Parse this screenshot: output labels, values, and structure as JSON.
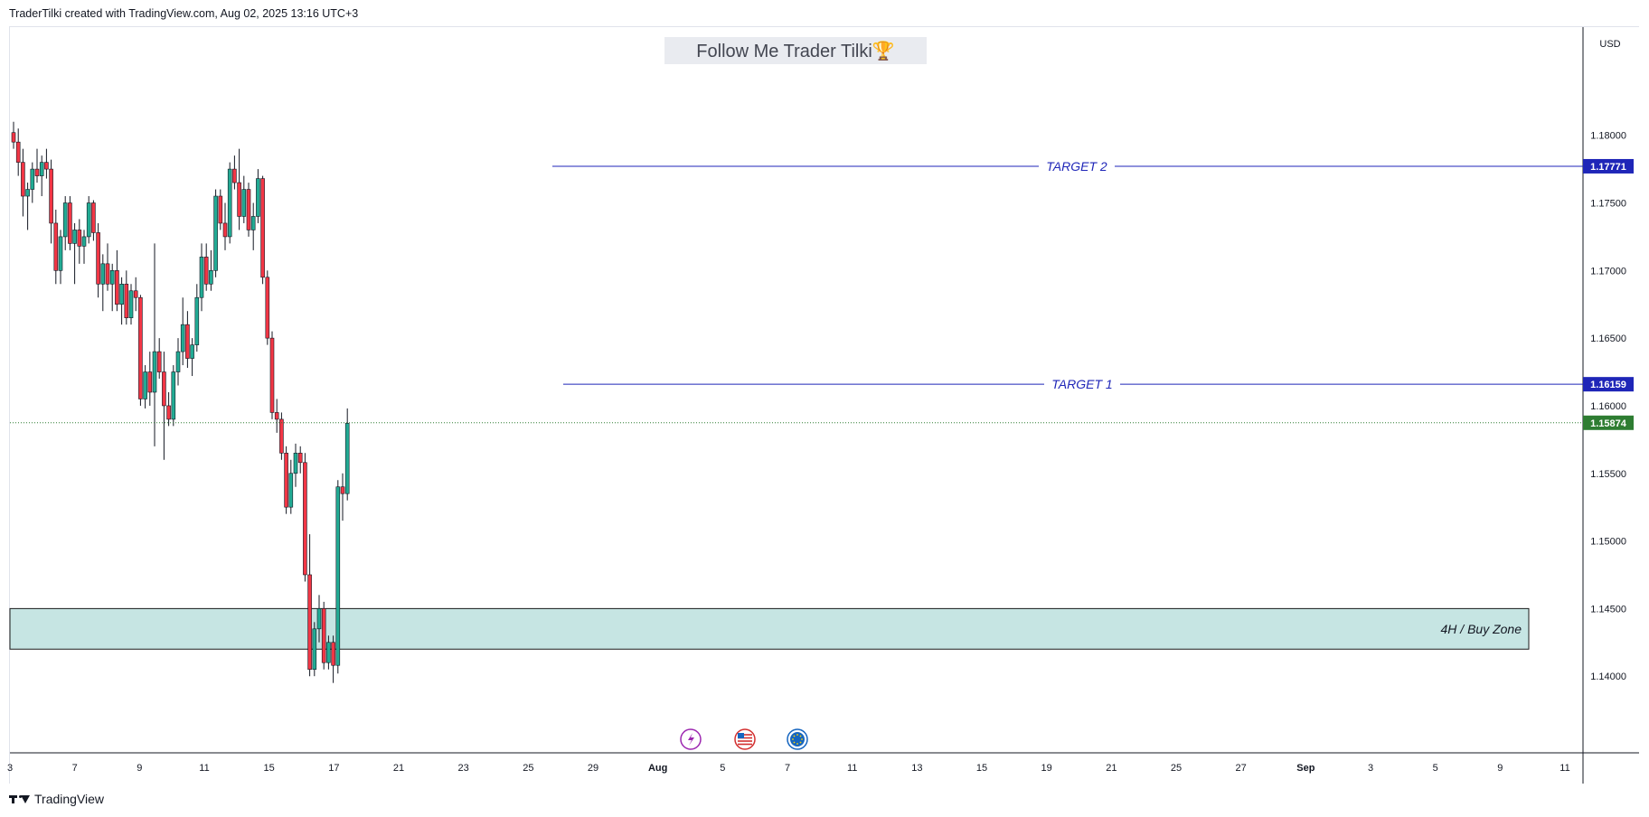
{
  "header": {
    "attribution": "TraderTilki created with TradingView.com, Aug 02, 2025 13:16 UTC+3"
  },
  "footer": {
    "brand": "TradingView"
  },
  "colors": {
    "up": "#22ab94",
    "down": "#f23645",
    "line": "#2962ff",
    "price": "#2e7d32",
    "zone_fill": "#c6e5e3",
    "zone_border": "#1a1a1a",
    "grid": "#f0f3fa"
  },
  "chart_data": {
    "type": "candlestick",
    "title": "Follow Me Trader Tilki🏆",
    "currency": "USD",
    "ylim": [
      1.135,
      1.188
    ],
    "y_ticks": [
      "1.18000",
      "1.17500",
      "1.17000",
      "1.16500",
      "1.16000",
      "1.15500",
      "1.15000",
      "1.14500",
      "1.14000"
    ],
    "x_tick_labels": [
      "3",
      "7",
      "9",
      "11",
      "15",
      "17",
      "21",
      "23",
      "25",
      "29",
      "Aug",
      "5",
      "7",
      "11",
      "13",
      "15",
      "19",
      "21",
      "25",
      "27",
      "Sep",
      "3",
      "5",
      "9",
      "11"
    ],
    "levels": [
      {
        "name": "target2",
        "label": "TARGET 2",
        "price": 1.17771,
        "price_label": "1.17771"
      },
      {
        "name": "target1",
        "label": "TARGET 1",
        "price": 1.16159,
        "price_label": "1.16159"
      }
    ],
    "last_price": {
      "price": 1.15874,
      "label": "1.15874"
    },
    "zone": {
      "label": "4H / Buy Zone",
      "top": 1.145,
      "bottom": 1.142
    },
    "event_icons": [
      "lightning-icon",
      "us-flag-icon",
      "eu-flag-icon"
    ],
    "candles": [
      [
        1.1802,
        1.181,
        1.179,
        1.1795
      ],
      [
        1.1795,
        1.1805,
        1.177,
        1.178
      ],
      [
        1.178,
        1.179,
        1.174,
        1.1755
      ],
      [
        1.1755,
        1.1765,
        1.173,
        1.176
      ],
      [
        1.176,
        1.178,
        1.175,
        1.1775
      ],
      [
        1.1775,
        1.179,
        1.1765,
        1.177
      ],
      [
        1.177,
        1.1785,
        1.1755,
        1.178
      ],
      [
        1.178,
        1.179,
        1.1768,
        1.1775
      ],
      [
        1.1775,
        1.1782,
        1.172,
        1.1735
      ],
      [
        1.1735,
        1.1745,
        1.169,
        1.17
      ],
      [
        1.17,
        1.173,
        1.169,
        1.1725
      ],
      [
        1.1725,
        1.1755,
        1.1715,
        1.175
      ],
      [
        1.175,
        1.1755,
        1.1715,
        1.172
      ],
      [
        1.172,
        1.1735,
        1.169,
        1.173
      ],
      [
        1.173,
        1.1738,
        1.1705,
        1.1718
      ],
      [
        1.1718,
        1.173,
        1.1705,
        1.1725
      ],
      [
        1.1725,
        1.1755,
        1.172,
        1.175
      ],
      [
        1.175,
        1.1752,
        1.1722,
        1.1728
      ],
      [
        1.1728,
        1.1735,
        1.168,
        1.169
      ],
      [
        1.169,
        1.1712,
        1.167,
        1.1705
      ],
      [
        1.1705,
        1.172,
        1.1685,
        1.169
      ],
      [
        1.169,
        1.1705,
        1.167,
        1.17
      ],
      [
        1.17,
        1.1715,
        1.167,
        1.1675
      ],
      [
        1.1675,
        1.1695,
        1.166,
        1.169
      ],
      [
        1.169,
        1.17,
        1.166,
        1.1665
      ],
      [
        1.1665,
        1.169,
        1.166,
        1.1685
      ],
      [
        1.1685,
        1.1695,
        1.167,
        1.168
      ],
      [
        1.168,
        1.1682,
        1.16,
        1.1605
      ],
      [
        1.1605,
        1.163,
        1.1598,
        1.1625
      ],
      [
        1.1625,
        1.164,
        1.16,
        1.161
      ],
      [
        1.161,
        1.172,
        1.157,
        1.164
      ],
      [
        1.164,
        1.165,
        1.162,
        1.1625
      ],
      [
        1.1625,
        1.164,
        1.156,
        1.16
      ],
      [
        1.16,
        1.161,
        1.1585,
        1.159
      ],
      [
        1.159,
        1.163,
        1.1585,
        1.1625
      ],
      [
        1.1625,
        1.165,
        1.1615,
        1.164
      ],
      [
        1.164,
        1.168,
        1.163,
        1.166
      ],
      [
        1.166,
        1.167,
        1.1628,
        1.1635
      ],
      [
        1.1635,
        1.165,
        1.1622,
        1.1645
      ],
      [
        1.1645,
        1.169,
        1.164,
        1.168
      ],
      [
        1.168,
        1.172,
        1.167,
        1.171
      ],
      [
        1.171,
        1.172,
        1.1685,
        1.169
      ],
      [
        1.169,
        1.1715,
        1.1685,
        1.17
      ],
      [
        1.17,
        1.176,
        1.1695,
        1.1755
      ],
      [
        1.1755,
        1.176,
        1.173,
        1.1735
      ],
      [
        1.1735,
        1.175,
        1.1715,
        1.1725
      ],
      [
        1.1725,
        1.178,
        1.172,
        1.1775
      ],
      [
        1.1775,
        1.1785,
        1.176,
        1.1765
      ],
      [
        1.1765,
        1.179,
        1.173,
        1.174
      ],
      [
        1.174,
        1.177,
        1.1735,
        1.176
      ],
      [
        1.176,
        1.1765,
        1.1725,
        1.173
      ],
      [
        1.173,
        1.175,
        1.1715,
        1.174
      ],
      [
        1.174,
        1.1775,
        1.1735,
        1.1768
      ],
      [
        1.1768,
        1.177,
        1.169,
        1.1695
      ],
      [
        1.1695,
        1.17,
        1.1645,
        1.165
      ],
      [
        1.165,
        1.1655,
        1.159,
        1.1595
      ],
      [
        1.1595,
        1.1605,
        1.158,
        1.159
      ],
      [
        1.159,
        1.1595,
        1.156,
        1.1565
      ],
      [
        1.1565,
        1.157,
        1.152,
        1.1525
      ],
      [
        1.1525,
        1.156,
        1.152,
        1.155
      ],
      [
        1.155,
        1.1572,
        1.154,
        1.1565
      ],
      [
        1.1565,
        1.157,
        1.155,
        1.1558
      ],
      [
        1.1558,
        1.1565,
        1.147,
        1.1475
      ],
      [
        1.1475,
        1.1505,
        1.14,
        1.1405
      ],
      [
        1.1405,
        1.144,
        1.14,
        1.1435
      ],
      [
        1.1435,
        1.146,
        1.1425,
        1.145
      ],
      [
        1.145,
        1.1455,
        1.1405,
        1.141
      ],
      [
        1.141,
        1.143,
        1.1405,
        1.1425
      ],
      [
        1.1425,
        1.143,
        1.1395,
        1.1408
      ],
      [
        1.1408,
        1.1545,
        1.1402,
        1.154
      ],
      [
        1.154,
        1.155,
        1.1515,
        1.1535
      ],
      [
        1.1535,
        1.1598,
        1.153,
        1.1587
      ]
    ]
  }
}
